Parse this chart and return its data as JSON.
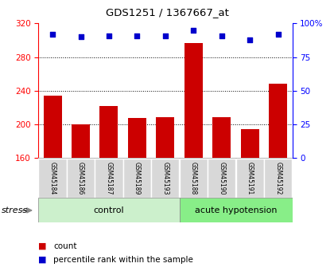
{
  "title": "GDS1251 / 1367667_at",
  "samples": [
    "GSM45184",
    "GSM45186",
    "GSM45187",
    "GSM45189",
    "GSM45193",
    "GSM45188",
    "GSM45190",
    "GSM45191",
    "GSM45192"
  ],
  "counts": [
    234,
    200,
    222,
    208,
    209,
    297,
    209,
    194,
    248
  ],
  "percentile_ranks": [
    92,
    90,
    91,
    91,
    91,
    95,
    91,
    88,
    92
  ],
  "bar_color": "#cc0000",
  "dot_color": "#0000cc",
  "ylim_left": [
    160,
    320
  ],
  "ylim_right": [
    0,
    100
  ],
  "yticks_left": [
    160,
    200,
    240,
    280,
    320
  ],
  "yticks_right": [
    0,
    25,
    50,
    75,
    100
  ],
  "grid_values": [
    200,
    240,
    280
  ],
  "bar_width": 0.65,
  "background_color": "#ffffff",
  "ctrl_color": "#ccf0cc",
  "acute_color": "#88ee88",
  "stress_label": "stress",
  "legend_count_label": "count",
  "legend_pct_label": "percentile rank within the sample",
  "n_control": 5,
  "n_acute": 4
}
